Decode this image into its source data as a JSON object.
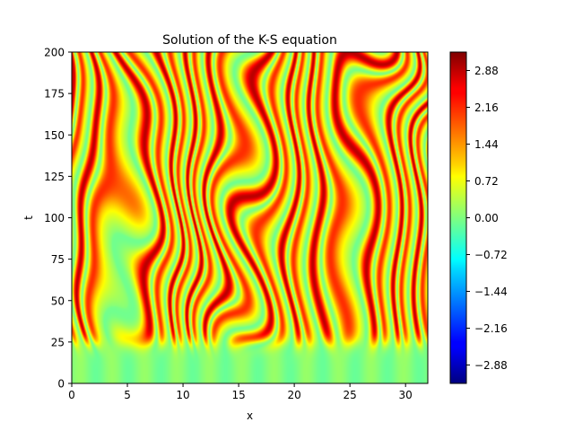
{
  "chart_data": {
    "type": "heatmap",
    "title": "Solution of the K-S equation",
    "xlabel": "x",
    "ylabel": "t",
    "xlim": [
      0,
      32
    ],
    "ylim": [
      0,
      200
    ],
    "x_ticks": [
      0,
      5,
      10,
      15,
      20,
      25,
      30
    ],
    "x_tick_labels": [
      "0",
      "5",
      "10",
      "15",
      "20",
      "25",
      "30"
    ],
    "y_ticks": [
      0,
      25,
      50,
      75,
      100,
      125,
      150,
      175,
      200
    ],
    "y_tick_labels": [
      "0",
      "25",
      "50",
      "75",
      "100",
      "125",
      "150",
      "175",
      "200"
    ],
    "colormap": "jet",
    "value_range": [
      -3.24,
      3.24
    ],
    "colorbar_ticks": [
      2.88,
      2.16,
      1.44,
      0.72,
      0.0,
      -0.72,
      -1.44,
      -2.16,
      -2.88
    ],
    "colorbar_tick_labels": [
      "2.88",
      "2.16",
      "1.44",
      "0.72",
      "0.00",
      "−0.72",
      "−1.44",
      "−2.16",
      "−2.88"
    ],
    "transition_t": 25,
    "initial_amplitude": 0.15,
    "pattern": "Stripes of alternating positive/negative values, nearly vertical, emerging after t approx 25 from a near-zero initial state"
  }
}
